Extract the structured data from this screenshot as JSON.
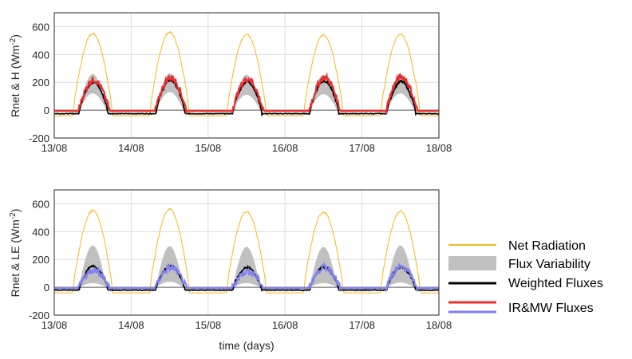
{
  "chart_data": [
    {
      "type": "line",
      "ylabel_main": "Rnet & H (Wm",
      "ylabel_sup": "-2",
      "ylabel_end": ")",
      "xlim": [
        13,
        18
      ],
      "ylim": [
        -200,
        700
      ],
      "xticks": [
        {
          "v": 13,
          "label": "13/08"
        },
        {
          "v": 14,
          "label": "14/08"
        },
        {
          "v": 15,
          "label": "15/08"
        },
        {
          "v": 16,
          "label": "16/08"
        },
        {
          "v": 17,
          "label": "17/08"
        },
        {
          "v": 18,
          "label": "18/08"
        }
      ],
      "yticks": [
        {
          "v": -200,
          "label": "-200"
        },
        {
          "v": 0,
          "label": "0"
        },
        {
          "v": 200,
          "label": "200"
        },
        {
          "v": 400,
          "label": "400"
        },
        {
          "v": 600,
          "label": "600"
        }
      ],
      "grid": true,
      "series": [
        {
          "key": "net_radiation",
          "color": "#f5b820",
          "night_value": -40,
          "peak_values": [
            550,
            560,
            545,
            540,
            545
          ]
        },
        {
          "key": "flux_variability",
          "color": "#c0c0c0",
          "upper_peaks": [
            260,
            265,
            255,
            255,
            260
          ],
          "lower_peaks": [
            120,
            130,
            110,
            115,
            120
          ]
        },
        {
          "key": "weighted_fluxes",
          "color": "#000000",
          "night_value": -25,
          "peak_values": [
            200,
            215,
            205,
            210,
            205
          ]
        },
        {
          "key": "ir_mw_fluxes",
          "color": "#e83030",
          "night_value": -5,
          "peak_values": [
            225,
            240,
            230,
            240,
            245
          ]
        }
      ]
    },
    {
      "type": "line",
      "ylabel_main": "Rnet & LE (Wm",
      "ylabel_sup": "-2",
      "ylabel_end": ")",
      "xlabel": "time (days)",
      "xlim": [
        13,
        18
      ],
      "ylim": [
        -200,
        700
      ],
      "xticks": [
        {
          "v": 13,
          "label": "13/08"
        },
        {
          "v": 14,
          "label": "14/08"
        },
        {
          "v": 15,
          "label": "15/08"
        },
        {
          "v": 16,
          "label": "16/08"
        },
        {
          "v": 17,
          "label": "17/08"
        },
        {
          "v": 18,
          "label": "18/08"
        }
      ],
      "yticks": [
        {
          "v": -200,
          "label": "-200"
        },
        {
          "v": 0,
          "label": "0"
        },
        {
          "v": 200,
          "label": "200"
        },
        {
          "v": 400,
          "label": "400"
        },
        {
          "v": 600,
          "label": "600"
        }
      ],
      "grid": true,
      "series": [
        {
          "key": "net_radiation",
          "color": "#f5b820",
          "night_value": -40,
          "peak_values": [
            550,
            560,
            545,
            540,
            545
          ]
        },
        {
          "key": "flux_variability",
          "color": "#c0c0c0",
          "upper_peaks": [
            300,
            295,
            290,
            290,
            300
          ],
          "lower_peaks": [
            30,
            40,
            30,
            30,
            35
          ]
        },
        {
          "key": "weighted_fluxes",
          "color": "#000000",
          "night_value": -20,
          "peak_values": [
            150,
            150,
            140,
            145,
            145
          ]
        },
        {
          "key": "ir_mw_fluxes",
          "color": "#8080f0",
          "night_value": -5,
          "peak_values": [
            130,
            145,
            120,
            150,
            150
          ]
        }
      ]
    }
  ],
  "legend": {
    "position": "right",
    "items": [
      {
        "label": "Net Radiation",
        "color": "#f5b820",
        "style": "line"
      },
      {
        "label": "Flux Variability",
        "color": "#c0c0c0",
        "style": "patch"
      },
      {
        "label": "Weighted Fluxes",
        "color": "#000000",
        "style": "line"
      },
      {
        "label": "IR&MW Fluxes",
        "color": "#e83030",
        "color2": "#8080f0",
        "style": "dual-line"
      }
    ]
  }
}
